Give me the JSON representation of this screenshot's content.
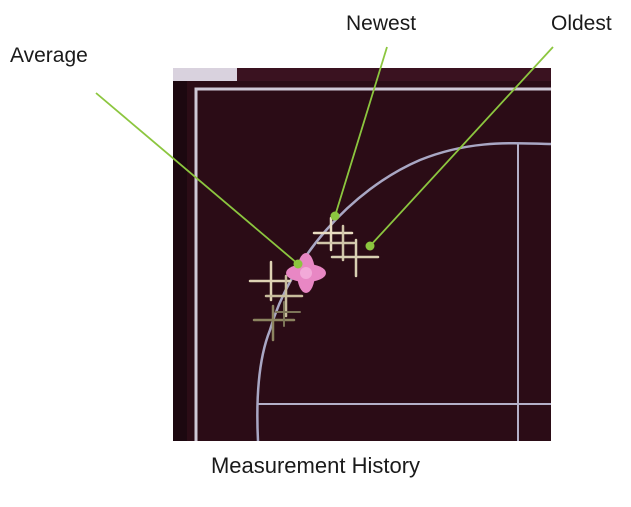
{
  "labels": {
    "average": "Average",
    "newest": "Newest",
    "oldest": "Oldest"
  },
  "caption": "Measurement History",
  "colors": {
    "screen_background": "#2b0c16",
    "screen_frame": "#cfc9d6",
    "trace": "#a9a7c4",
    "marker_light": "#e8dcc0",
    "marker_dim": "#8c8460",
    "average_marker": "#e887c4",
    "callout_line": "#8cc63f",
    "callout_dot": "#8cc63f"
  },
  "icons": {
    "marker": "crosshair-plus",
    "average": "filled-plus"
  }
}
